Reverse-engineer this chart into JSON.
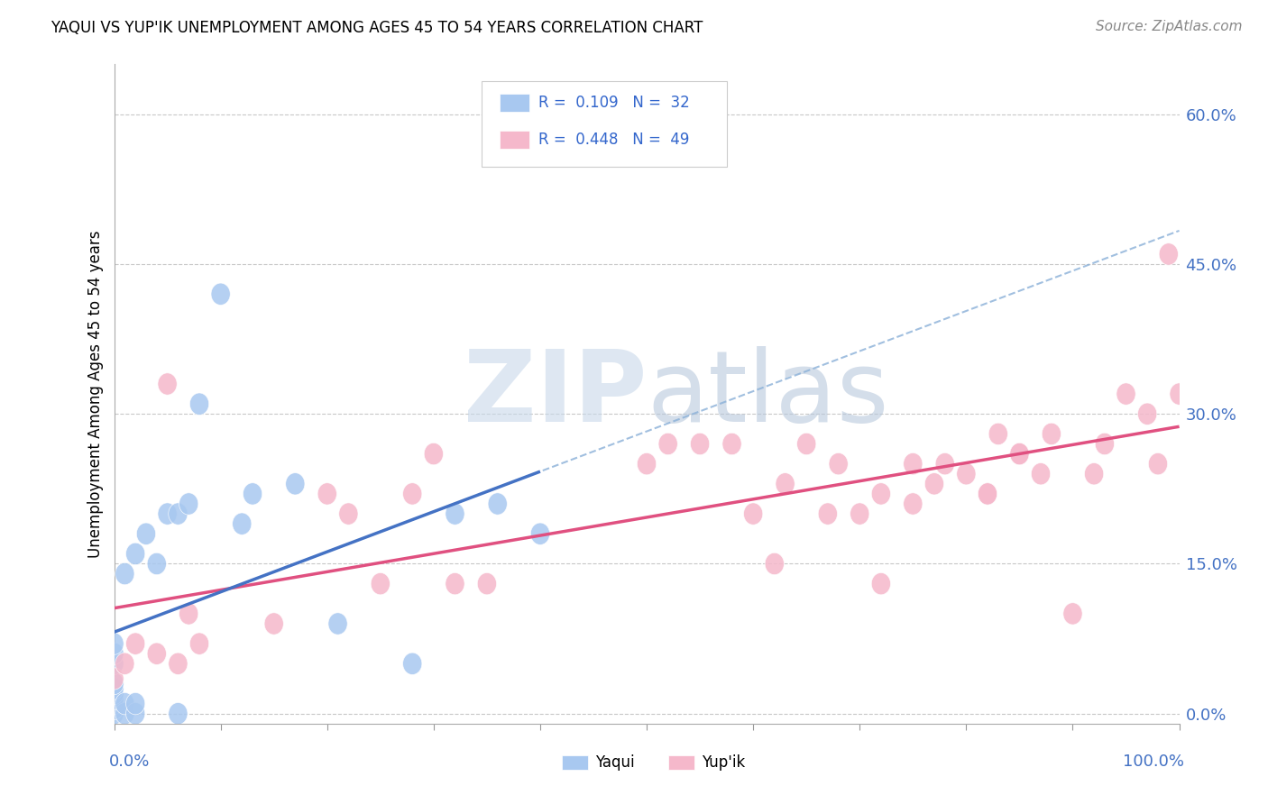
{
  "title": "YAQUI VS YUP'IK UNEMPLOYMENT AMONG AGES 45 TO 54 YEARS CORRELATION CHART",
  "source": "Source: ZipAtlas.com",
  "ylabel": "Unemployment Among Ages 45 to 54 years",
  "ytick_labels": [
    "0.0%",
    "15.0%",
    "30.0%",
    "45.0%",
    "60.0%"
  ],
  "ytick_values": [
    0.0,
    0.15,
    0.3,
    0.45,
    0.6
  ],
  "xlim": [
    0.0,
    1.0
  ],
  "ylim": [
    -0.01,
    0.65
  ],
  "yaqui_color": "#A8C8F0",
  "yupik_color": "#F5B8CB",
  "yaqui_line_color": "#4472C4",
  "yupik_line_color": "#E05080",
  "dashed_line_color": "#8AB0D8",
  "watermark_color": "#D0DFF0",
  "background_color": "#FFFFFF",
  "grid_color": "#C8C8C8",
  "title_fontsize": 12,
  "source_fontsize": 11,
  "yaqui_x": [
    0.0,
    0.0,
    0.0,
    0.0,
    0.0,
    0.0,
    0.0,
    0.0,
    0.0,
    0.0,
    0.01,
    0.01,
    0.01,
    0.02,
    0.02,
    0.02,
    0.03,
    0.04,
    0.05,
    0.06,
    0.06,
    0.07,
    0.08,
    0.1,
    0.12,
    0.13,
    0.17,
    0.21,
    0.28,
    0.32,
    0.36,
    0.4
  ],
  "yaqui_y": [
    0.0,
    0.005,
    0.01,
    0.015,
    0.02,
    0.025,
    0.03,
    0.05,
    0.06,
    0.07,
    0.0,
    0.01,
    0.14,
    0.0,
    0.01,
    0.16,
    0.18,
    0.15,
    0.2,
    0.0,
    0.2,
    0.21,
    0.31,
    0.42,
    0.19,
    0.22,
    0.23,
    0.09,
    0.05,
    0.2,
    0.21,
    0.18
  ],
  "yupik_x": [
    0.0,
    0.01,
    0.02,
    0.04,
    0.05,
    0.06,
    0.07,
    0.08,
    0.15,
    0.2,
    0.22,
    0.25,
    0.28,
    0.3,
    0.32,
    0.35,
    0.5,
    0.52,
    0.55,
    0.58,
    0.6,
    0.62,
    0.63,
    0.65,
    0.67,
    0.68,
    0.7,
    0.72,
    0.75,
    0.77,
    0.78,
    0.8,
    0.82,
    0.83,
    0.85,
    0.87,
    0.88,
    0.9,
    0.92,
    0.93,
    0.95,
    0.97,
    0.98,
    0.99,
    1.0,
    0.72,
    0.75,
    0.82,
    0.85
  ],
  "yupik_y": [
    0.035,
    0.05,
    0.07,
    0.06,
    0.33,
    0.05,
    0.1,
    0.07,
    0.09,
    0.22,
    0.2,
    0.13,
    0.22,
    0.26,
    0.13,
    0.13,
    0.25,
    0.27,
    0.27,
    0.27,
    0.2,
    0.15,
    0.23,
    0.27,
    0.2,
    0.25,
    0.2,
    0.22,
    0.25,
    0.23,
    0.25,
    0.24,
    0.22,
    0.28,
    0.26,
    0.24,
    0.28,
    0.1,
    0.24,
    0.27,
    0.32,
    0.3,
    0.25,
    0.46,
    0.32,
    0.13,
    0.21,
    0.22,
    0.26
  ]
}
